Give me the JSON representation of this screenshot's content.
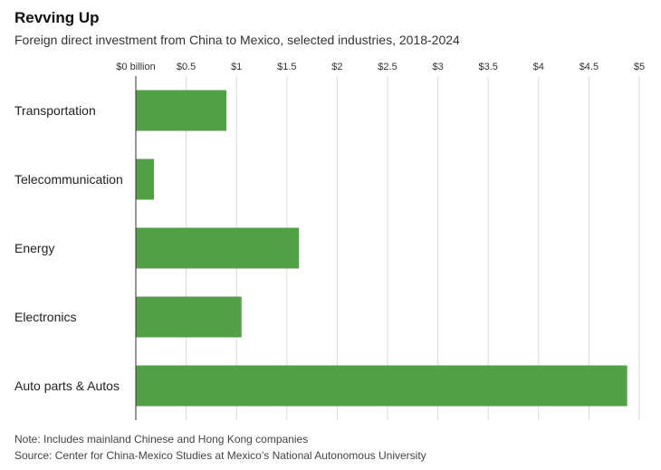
{
  "header": {
    "title": "Revving Up",
    "subtitle": "Foreign direct investment from China to Mexico, selected industries, 2018-2024"
  },
  "footer": {
    "note": "Note: Includes mainland Chinese and Hong Kong companies",
    "source": "Source: Center for China-Mexico Studies at Mexico’s National Autonomous University"
  },
  "chart_data": {
    "type": "bar",
    "orientation": "horizontal",
    "title": "Revving Up",
    "subtitle": "Foreign direct investment from China to Mexico, selected industries, 2018-2024",
    "categories": [
      "Transportation",
      "Telecommunication",
      "Energy",
      "Electronics",
      "Auto parts & Autos"
    ],
    "values": [
      0.9,
      0.18,
      1.62,
      1.05,
      4.88
    ],
    "unit": "billion",
    "xlim": [
      0,
      5
    ],
    "ticks": [
      0,
      0.5,
      1,
      1.5,
      2,
      2.5,
      3,
      3.5,
      4,
      4.5,
      5
    ],
    "tick_labels": [
      "$0 billion",
      "$0.5",
      "$1",
      "$1.5",
      "$2",
      "$2.5",
      "$3",
      "$3.5",
      "$4",
      "$4.5",
      "$5"
    ],
    "bar_color": "#52a147",
    "grid": true,
    "legend": "none"
  }
}
